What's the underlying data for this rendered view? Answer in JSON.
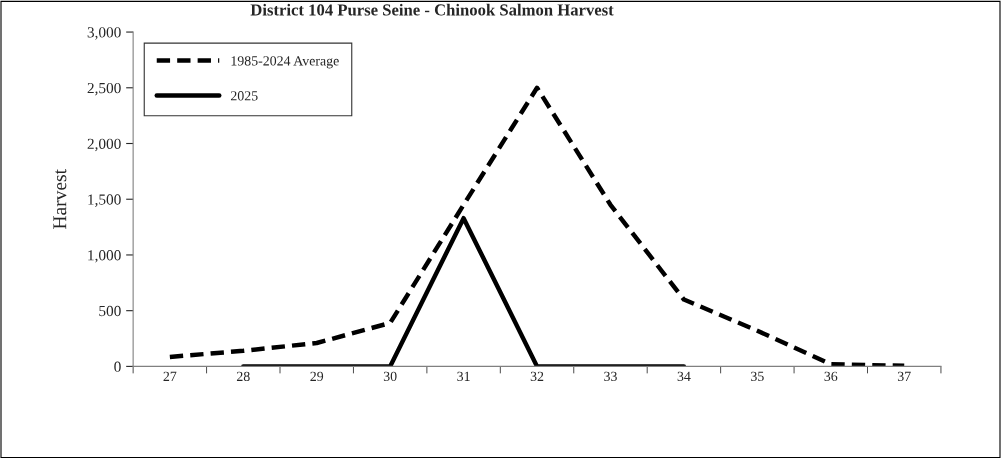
{
  "chart_data": {
    "type": "line",
    "title": "District 104 Purse Seine - Chinook Salmon Harvest",
    "ylabel": "Harvest",
    "categories": [
      "27",
      "28",
      "29",
      "30",
      "31",
      "32",
      "33",
      "34",
      "35",
      "36",
      "37"
    ],
    "series": [
      {
        "name": "1985-2024 Average",
        "color": "#000000",
        "line_style": "dashed",
        "values": [
          85,
          140,
          210,
          390,
          1450,
          2500,
          1450,
          600,
          320,
          20,
          5
        ]
      },
      {
        "name": "2025",
        "color": "#000000",
        "line_style": "solid",
        "values": [
          null,
          0,
          0,
          0,
          1330,
          0,
          0,
          0,
          null,
          null,
          null
        ]
      }
    ],
    "ylim": [
      0,
      3000
    ],
    "yticks": [
      {
        "value": 0,
        "label": "0"
      },
      {
        "value": 500,
        "label": "500"
      },
      {
        "value": 1000,
        "label": "1,000"
      },
      {
        "value": 1500,
        "label": "1,500"
      },
      {
        "value": 2000,
        "label": "2,000"
      },
      {
        "value": 2500,
        "label": "2,500"
      },
      {
        "value": 3000,
        "label": "3,000"
      }
    ],
    "grid": false,
    "legend": "top left",
    "marker": "none"
  }
}
